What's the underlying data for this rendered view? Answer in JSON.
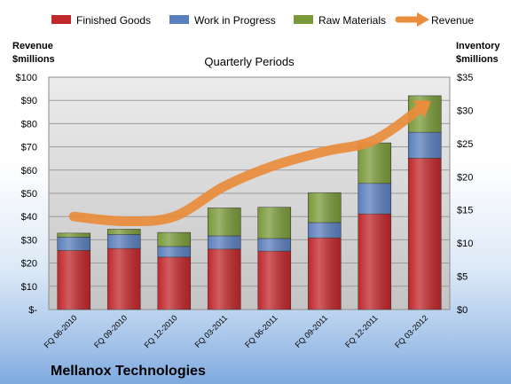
{
  "chart_data": {
    "type": "bar",
    "stacked": true,
    "title": "Quarterly Periods",
    "company": "Mellanox Technologies",
    "categories": [
      "FQ 06-2010",
      "FQ 09-2010",
      "FQ 12-2010",
      "FQ 03-2011",
      "FQ 06-2011",
      "FQ 09-2011",
      "FQ 12-2011",
      "FQ 03-2012"
    ],
    "left_axis": {
      "label_line1": "Revenue",
      "label_line2": "$millions",
      "ylim": [
        0,
        100
      ],
      "step": 10,
      "tick_labels": [
        "$-",
        "$10",
        "$20",
        "$30",
        "$40",
        "$50",
        "$60",
        "$70",
        "$80",
        "$90",
        "$100"
      ]
    },
    "right_axis": {
      "label_line1": "Inventory",
      "label_line2": "$millions",
      "ylim": [
        0,
        35
      ],
      "step": 5,
      "tick_labels": [
        "$0",
        "$5",
        "$10",
        "$15",
        "$20",
        "$25",
        "$30",
        "$35"
      ]
    },
    "series": [
      {
        "name": "Finished Goods",
        "axis": "right",
        "color": "#c0282c",
        "values": [
          8.9,
          9.2,
          7.9,
          9.1,
          8.8,
          10.8,
          14.4,
          22.8
        ]
      },
      {
        "name": "Work in Progress",
        "axis": "right",
        "color": "#5b7fbd",
        "values": [
          2.0,
          2.1,
          1.6,
          2.0,
          1.9,
          2.3,
          4.6,
          3.9
        ]
      },
      {
        "name": "Raw Materials",
        "axis": "right",
        "color": "#7a9a3a",
        "values": [
          0.6,
          0.8,
          2.1,
          4.2,
          4.7,
          4.5,
          6.1,
          5.5
        ]
      },
      {
        "name": "Revenue",
        "axis": "left",
        "type": "line",
        "color": "#e98c3c",
        "values": [
          40,
          38,
          40,
          53,
          62,
          68,
          73,
          88
        ]
      }
    ],
    "grid": true,
    "legend_position": "top"
  }
}
